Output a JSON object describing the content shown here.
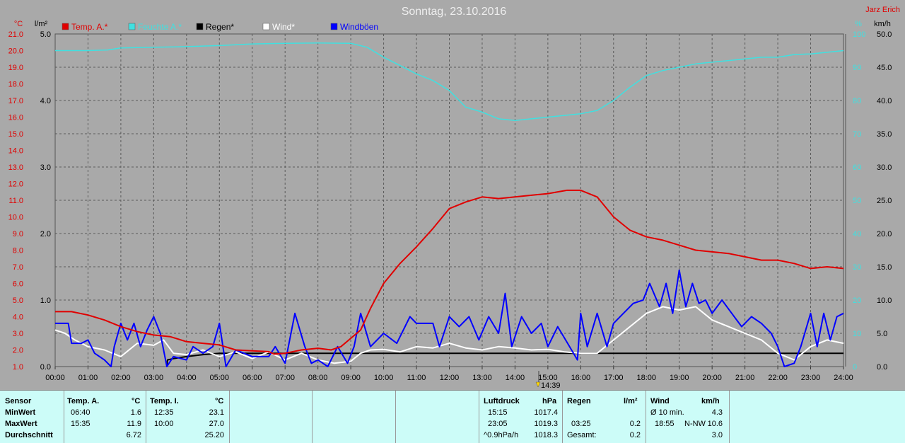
{
  "title": "Sonntag, 23.10.2016",
  "author": "Jarz Erich",
  "colors": {
    "temp": "#e00000",
    "pressure": "#40e0e0",
    "rain": "#000000",
    "wind": "#ffffff",
    "gust": "#0000ff"
  },
  "axes": {
    "left_temp_unit": "°C",
    "left_rain_unit": "l/m²",
    "right_pressure_unit": "%",
    "right_wind_unit": "km/h",
    "temp_ticks": [
      "21.0",
      "20.0",
      "19.0",
      "18.0",
      "17.0",
      "16.0",
      "15.0",
      "14.0",
      "13.0",
      "12.0",
      "11.0",
      "10.0",
      "9.0",
      "8.0",
      "7.0",
      "6.0",
      "5.0",
      "4.0",
      "3.0",
      "2.0",
      "1.0"
    ],
    "rain_ticks": [
      "5.0",
      "4.0",
      "3.0",
      "2.0",
      "1.0",
      "0.0"
    ],
    "pressure_ticks": [
      "100",
      "90",
      "80",
      "70",
      "60",
      "50",
      "40",
      "30",
      "20",
      "10",
      "0"
    ],
    "wind_ticks": [
      "50.0",
      "45.0",
      "40.0",
      "35.0",
      "30.0",
      "25.0",
      "20.0",
      "15.0",
      "10.0",
      "5.0",
      "0.0"
    ],
    "time_ticks": [
      "00:00",
      "01:00",
      "02:00",
      "03:00",
      "04:00",
      "05:00",
      "06:00",
      "07:00",
      "08:00",
      "09:00",
      "10:00",
      "11:00",
      "12:00",
      "13:00",
      "14:00",
      "15:00",
      "16:00",
      "17:00",
      "18:00",
      "19:00",
      "20:00",
      "21:00",
      "22:00",
      "23:00",
      "24:00"
    ]
  },
  "legend": [
    {
      "label": "Temp. A.*",
      "color": "#e00000"
    },
    {
      "label": "Feuchte A.*",
      "color": "#40e0e0"
    },
    {
      "label": "Regen*",
      "color": "#000000"
    },
    {
      "label": "Wind*",
      "color": "#ffffff"
    },
    {
      "label": "Windböen",
      "color": "#0000ff"
    }
  ],
  "cursor_label": "14:39",
  "chart_data": {
    "type": "line",
    "title": "Sonntag, 23.10.2016",
    "x_unit": "hours",
    "xlim": [
      0,
      24
    ],
    "series": [
      {
        "name": "Temp. A.*",
        "axis": "temp",
        "ylim": [
          1,
          21
        ],
        "points": [
          [
            0,
            4.3
          ],
          [
            0.5,
            4.3
          ],
          [
            1,
            4.1
          ],
          [
            1.5,
            3.8
          ],
          [
            2,
            3.4
          ],
          [
            2.5,
            3.1
          ],
          [
            3,
            2.9
          ],
          [
            3.5,
            2.8
          ],
          [
            4,
            2.5
          ],
          [
            4.5,
            2.4
          ],
          [
            5,
            2.3
          ],
          [
            5.5,
            2.0
          ],
          [
            6,
            1.95
          ],
          [
            6.5,
            1.9
          ],
          [
            6.67,
            1.75
          ],
          [
            7,
            1.8
          ],
          [
            7.5,
            2.0
          ],
          [
            8,
            2.1
          ],
          [
            8.4,
            2.0
          ],
          [
            8.7,
            2.2
          ],
          [
            9,
            2.7
          ],
          [
            9.3,
            3.2
          ],
          [
            9.6,
            4.5
          ],
          [
            10,
            6.0
          ],
          [
            10.5,
            7.2
          ],
          [
            11,
            8.2
          ],
          [
            11.5,
            9.3
          ],
          [
            12,
            10.5
          ],
          [
            12.5,
            10.9
          ],
          [
            13,
            11.2
          ],
          [
            13.5,
            11.1
          ],
          [
            14,
            11.2
          ],
          [
            14.5,
            11.3
          ],
          [
            15,
            11.4
          ],
          [
            15.58,
            11.6
          ],
          [
            16,
            11.6
          ],
          [
            16.5,
            11.2
          ],
          [
            17,
            10.0
          ],
          [
            17.5,
            9.2
          ],
          [
            18,
            8.8
          ],
          [
            18.5,
            8.6
          ],
          [
            19,
            8.3
          ],
          [
            19.5,
            8.0
          ],
          [
            20,
            7.9
          ],
          [
            20.5,
            7.8
          ],
          [
            21,
            7.6
          ],
          [
            21.5,
            7.4
          ],
          [
            22,
            7.4
          ],
          [
            22.5,
            7.2
          ],
          [
            23,
            6.9
          ],
          [
            23.5,
            7.0
          ],
          [
            24,
            6.9
          ]
        ]
      },
      {
        "name": "Feuchte A.*",
        "axis": "pressure",
        "ylim": [
          0,
          100
        ],
        "points": [
          [
            0,
            95
          ],
          [
            1,
            95
          ],
          [
            1.6,
            95.2
          ],
          [
            2,
            95.8
          ],
          [
            3,
            96
          ],
          [
            4,
            96.2
          ],
          [
            5,
            96.5
          ],
          [
            6,
            97
          ],
          [
            7,
            97.2
          ],
          [
            8,
            97.3
          ],
          [
            9,
            97.2
          ],
          [
            9.5,
            96
          ],
          [
            10,
            93
          ],
          [
            10.5,
            90.5
          ],
          [
            11,
            88
          ],
          [
            11.5,
            86
          ],
          [
            12,
            83
          ],
          [
            12.5,
            78
          ],
          [
            13,
            76.5
          ],
          [
            13.5,
            74.5
          ],
          [
            14,
            74
          ],
          [
            14.5,
            74.5
          ],
          [
            15,
            75
          ],
          [
            15.5,
            75.5
          ],
          [
            16,
            76
          ],
          [
            16.5,
            77
          ],
          [
            17,
            80
          ],
          [
            17.5,
            84
          ],
          [
            18,
            87.5
          ],
          [
            18.5,
            89
          ],
          [
            19,
            90
          ],
          [
            19.5,
            91
          ],
          [
            20,
            91.5
          ],
          [
            20.5,
            92
          ],
          [
            21,
            92.5
          ],
          [
            21.5,
            93
          ],
          [
            22,
            93
          ],
          [
            22.5,
            93.8
          ],
          [
            23,
            94
          ],
          [
            23.5,
            94.5
          ],
          [
            24,
            95
          ]
        ]
      },
      {
        "name": "Regen*",
        "axis": "rain",
        "ylim": [
          0,
          5
        ],
        "points": [
          [
            3.4,
            0
          ],
          [
            3.42,
            0.1
          ],
          [
            3.6,
            0.12
          ],
          [
            4,
            0.15
          ],
          [
            4.5,
            0.18
          ],
          [
            5,
            0.2
          ],
          [
            24,
            0.2
          ]
        ]
      },
      {
        "name": "Wind*",
        "axis": "wind",
        "ylim": [
          0,
          50
        ],
        "points": [
          [
            0,
            5.5
          ],
          [
            0.3,
            5
          ],
          [
            0.6,
            4
          ],
          [
            1,
            3
          ],
          [
            1.5,
            2.5
          ],
          [
            2,
            1.5
          ],
          [
            2.5,
            3.5
          ],
          [
            3,
            3.2
          ],
          [
            3.3,
            4
          ],
          [
            3.6,
            2
          ],
          [
            4,
            1.8
          ],
          [
            4.5,
            2.5
          ],
          [
            5,
            1.5
          ],
          [
            5.5,
            2.2
          ],
          [
            6,
            1.2
          ],
          [
            6.5,
            2.2
          ],
          [
            7,
            1
          ],
          [
            7.5,
            2
          ],
          [
            8,
            1
          ],
          [
            8.5,
            0.5
          ],
          [
            9,
            0.8
          ],
          [
            9.3,
            2
          ],
          [
            9.6,
            2.5
          ],
          [
            10,
            2.6
          ],
          [
            10.5,
            2.2
          ],
          [
            11,
            3
          ],
          [
            11.5,
            2.8
          ],
          [
            12,
            3.5
          ],
          [
            12.5,
            2.8
          ],
          [
            13,
            2.5
          ],
          [
            13.5,
            3
          ],
          [
            14,
            2.8
          ],
          [
            14.5,
            2.5
          ],
          [
            15,
            2.6
          ],
          [
            15.5,
            2.2
          ],
          [
            16,
            2
          ],
          [
            16.5,
            2
          ],
          [
            17,
            4
          ],
          [
            17.5,
            6
          ],
          [
            18,
            8
          ],
          [
            18.5,
            9
          ],
          [
            19,
            8.5
          ],
          [
            19.5,
            9
          ],
          [
            20,
            7
          ],
          [
            20.5,
            6
          ],
          [
            21,
            5
          ],
          [
            21.5,
            4
          ],
          [
            22,
            2
          ],
          [
            22.5,
            1
          ],
          [
            23,
            3
          ],
          [
            23.5,
            4
          ],
          [
            24,
            3.5
          ]
        ]
      },
      {
        "name": "Windböen",
        "axis": "wind",
        "ylim": [
          0,
          50
        ],
        "points": [
          [
            0,
            6.5
          ],
          [
            0.4,
            6.5
          ],
          [
            0.5,
            3.5
          ],
          [
            0.8,
            3.5
          ],
          [
            1,
            4
          ],
          [
            1.2,
            2
          ],
          [
            1.5,
            1
          ],
          [
            1.7,
            0
          ],
          [
            1.8,
            3
          ],
          [
            2,
            6.5
          ],
          [
            2.2,
            4
          ],
          [
            2.4,
            6.5
          ],
          [
            2.6,
            3
          ],
          [
            2.8,
            5.5
          ],
          [
            3,
            7.5
          ],
          [
            3.2,
            5
          ],
          [
            3.4,
            0
          ],
          [
            3.6,
            1.5
          ],
          [
            4,
            1
          ],
          [
            4.2,
            3
          ],
          [
            4.5,
            2
          ],
          [
            4.8,
            3
          ],
          [
            5,
            6.5
          ],
          [
            5.2,
            0
          ],
          [
            5.5,
            2.5
          ],
          [
            6,
            1.5
          ],
          [
            6.5,
            1.5
          ],
          [
            6.7,
            3
          ],
          [
            7,
            0.5
          ],
          [
            7.3,
            8
          ],
          [
            7.6,
            3
          ],
          [
            7.8,
            0.5
          ],
          [
            8,
            1
          ],
          [
            8.3,
            0
          ],
          [
            8.6,
            3
          ],
          [
            8.9,
            0.5
          ],
          [
            9.1,
            3
          ],
          [
            9.3,
            8
          ],
          [
            9.6,
            3
          ],
          [
            10,
            5
          ],
          [
            10.4,
            3.5
          ],
          [
            10.8,
            7.5
          ],
          [
            11,
            6.5
          ],
          [
            11.5,
            6.5
          ],
          [
            11.7,
            3
          ],
          [
            12,
            7.5
          ],
          [
            12.3,
            6
          ],
          [
            12.6,
            7.5
          ],
          [
            12.9,
            4
          ],
          [
            13.2,
            7.5
          ],
          [
            13.5,
            5
          ],
          [
            13.7,
            11
          ],
          [
            13.9,
            3
          ],
          [
            14.2,
            7.5
          ],
          [
            14.5,
            5
          ],
          [
            14.8,
            6.5
          ],
          [
            15,
            3
          ],
          [
            15.3,
            6
          ],
          [
            15.6,
            3.5
          ],
          [
            15.9,
            1
          ],
          [
            16,
            8
          ],
          [
            16.2,
            3
          ],
          [
            16.5,
            8
          ],
          [
            16.8,
            3
          ],
          [
            17,
            6.5
          ],
          [
            17.3,
            8
          ],
          [
            17.6,
            9.5
          ],
          [
            17.9,
            10
          ],
          [
            18.1,
            12.5
          ],
          [
            18.4,
            9
          ],
          [
            18.6,
            12.5
          ],
          [
            18.8,
            8
          ],
          [
            19,
            14.5
          ],
          [
            19.2,
            9
          ],
          [
            19.4,
            12.5
          ],
          [
            19.6,
            9.5
          ],
          [
            19.8,
            10
          ],
          [
            20,
            8
          ],
          [
            20.3,
            10
          ],
          [
            20.6,
            8
          ],
          [
            20.9,
            6
          ],
          [
            21.2,
            7.5
          ],
          [
            21.5,
            6.5
          ],
          [
            21.8,
            5
          ],
          [
            22,
            3
          ],
          [
            22.2,
            0
          ],
          [
            22.5,
            0.5
          ],
          [
            22.7,
            3
          ],
          [
            23,
            8
          ],
          [
            23.2,
            3
          ],
          [
            23.4,
            8
          ],
          [
            23.6,
            4
          ],
          [
            23.8,
            7.5
          ],
          [
            24,
            8
          ]
        ]
      }
    ]
  },
  "stats": {
    "col_sensor": {
      "header": "Sensor",
      "rows": [
        "MinWert",
        "MaxWert",
        "Durchschnitt"
      ]
    },
    "temp_a": {
      "header": "Temp. A.",
      "unit": "°C",
      "min_time": "06:40",
      "min_val": "1.6",
      "max_time": "15:35",
      "max_val": "11.9",
      "avg": "6.72"
    },
    "temp_i": {
      "header": "Temp. I.",
      "unit": "°C",
      "min_time": "12:35",
      "min_val": "23.1",
      "max_time": "10:00",
      "max_val": "27.0",
      "avg": "25.20"
    },
    "pressure": {
      "header": "Luftdruck",
      "unit": "hPa",
      "min_time": "15:15",
      "min_val": "1017.4",
      "max_time": "23:05",
      "max_val": "1019.3",
      "avg_label": "^0.9hPa/h",
      "avg": "1018.3"
    },
    "rain": {
      "header": "Regen",
      "unit": "l/m²",
      "max_time": "03:25",
      "max_val": "0.2",
      "total_label": "Gesamt:",
      "total": "0.2"
    },
    "wind": {
      "header": "Wind",
      "unit": "km/h",
      "row1_label": "Ø 10 min.",
      "row1_val": "4.3",
      "row2_time": "18:55",
      "row2_dir": "N-NW",
      "row2_val": "10.6",
      "row3_val": "3.0"
    }
  }
}
